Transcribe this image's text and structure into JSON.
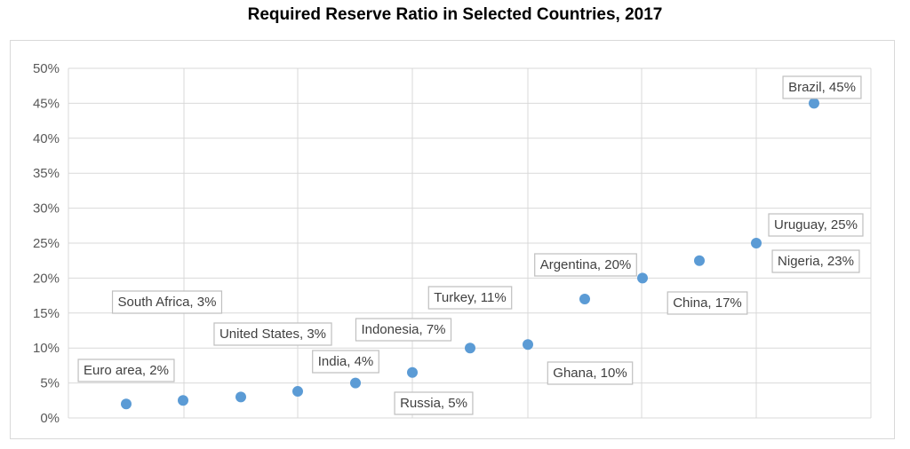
{
  "chart_data": {
    "type": "scatter",
    "title": "Required Reserve Ratio in Selected Countries, 2017",
    "xlabel": "",
    "ylabel": "",
    "ylim": [
      0,
      0.5
    ],
    "y_ticks": [
      "0%",
      "5%",
      "10%",
      "15%",
      "20%",
      "25%",
      "30%",
      "35%",
      "40%",
      "45%",
      "50%"
    ],
    "grid": true,
    "marker_color": "#5b9bd5",
    "points": [
      {
        "x": 1,
        "y": 0.02,
        "label": "Euro area, 2%"
      },
      {
        "x": 2,
        "y": 0.025,
        "label": "South Africa, 3%"
      },
      {
        "x": 3,
        "y": 0.03,
        "label": "United States, 3%"
      },
      {
        "x": 4,
        "y": 0.038,
        "label": "India, 4%"
      },
      {
        "x": 5,
        "y": 0.05,
        "label": "Russia, 5%"
      },
      {
        "x": 6,
        "y": 0.065,
        "label": "Indonesia, 7%"
      },
      {
        "x": 7,
        "y": 0.1,
        "label": "Ghana, 10%"
      },
      {
        "x": 8,
        "y": 0.105,
        "label": "Turkey, 11%"
      },
      {
        "x": 9,
        "y": 0.17,
        "label": "China, 17%"
      },
      {
        "x": 10,
        "y": 0.2,
        "label": "Argentina, 20%"
      },
      {
        "x": 11,
        "y": 0.225,
        "label": "Nigeria, 23%"
      },
      {
        "x": 12,
        "y": 0.25,
        "label": "Uruguay, 25%"
      },
      {
        "x": 13,
        "y": 0.45,
        "label": "Brazil, 45%"
      }
    ]
  }
}
